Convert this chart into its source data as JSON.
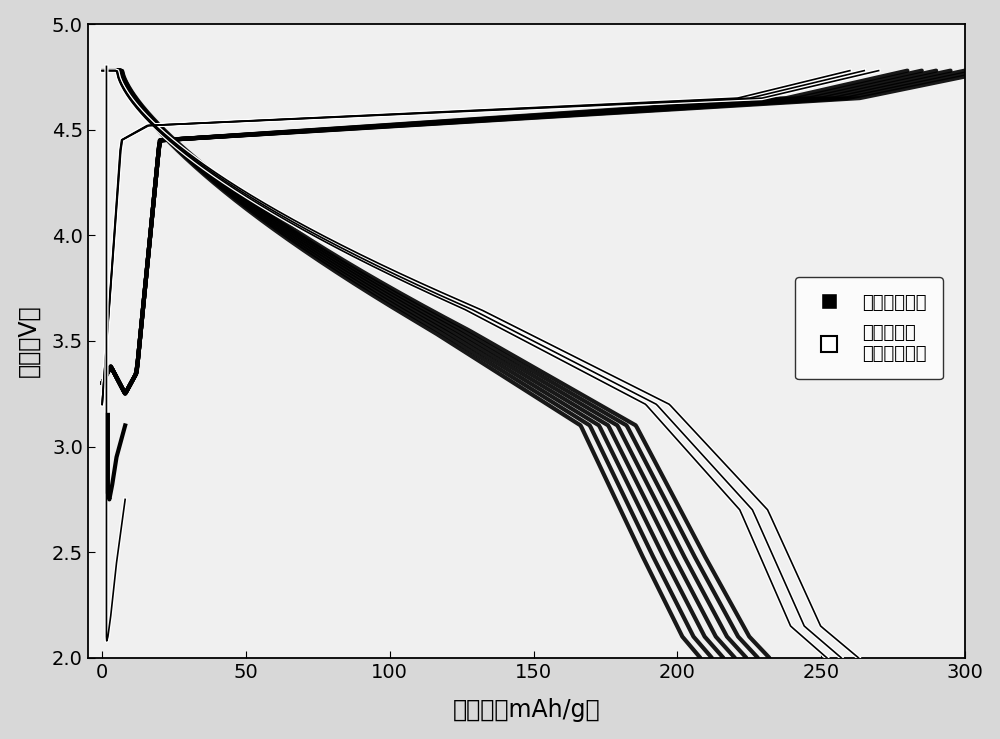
{
  "xlabel": "比容量（mAh/g）",
  "ylabel": "电压（V）",
  "xlim": [
    -5,
    300
  ],
  "ylim": [
    2.0,
    5.0
  ],
  "xticks": [
    0,
    50,
    100,
    150,
    200,
    250,
    300
  ],
  "yticks": [
    2.0,
    2.5,
    3.0,
    3.5,
    4.0,
    4.5,
    5.0
  ],
  "legend_label1": "富锂锰基材料",
  "legend_label2": "表面改性后\n富锂锰基材料",
  "bg_color": "#d8d8d8",
  "ax_bg_color": "#f0f0f0"
}
